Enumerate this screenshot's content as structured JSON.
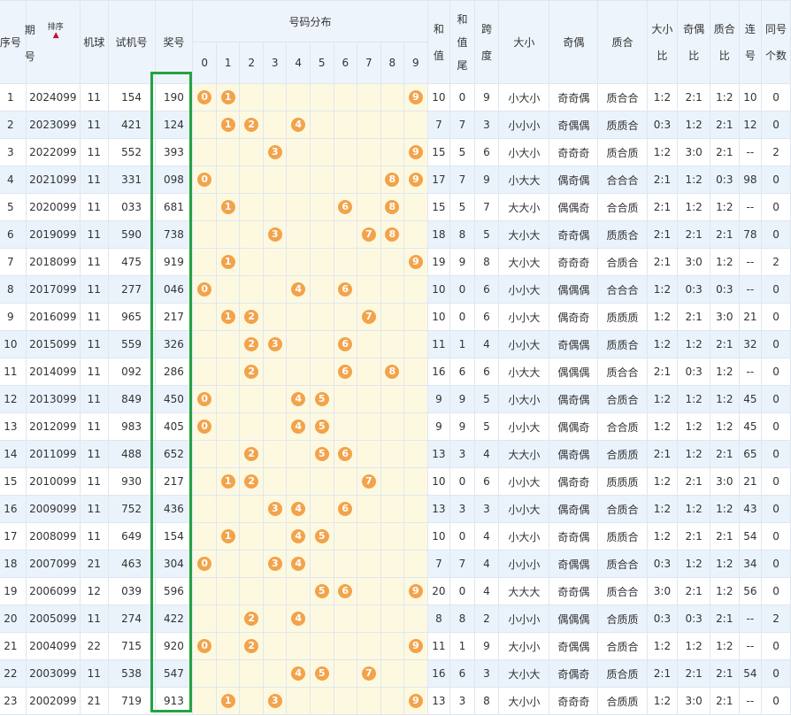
{
  "header": {
    "seq": "序号",
    "period_line1": "期",
    "period_line2": "号",
    "sort_label": "排序",
    "sort_arrow": "▲",
    "machine": "机球",
    "test_no": "试机号",
    "prize": "奖号",
    "dist_title": "号码分布",
    "digits": [
      "0",
      "1",
      "2",
      "3",
      "4",
      "5",
      "6",
      "7",
      "8",
      "9"
    ],
    "sum_l1": "和",
    "sum_l2": "值",
    "sumtail_l1": "和",
    "sumtail_l2": "值",
    "sumtail_l3": "尾",
    "span_l1": "跨",
    "span_l2": "度",
    "size": "大小",
    "parity": "奇偶",
    "prime": "质合",
    "size_ratio_l1": "大小",
    "size_ratio_l2": "比",
    "parity_ratio_l1": "奇偶",
    "parity_ratio_l2": "比",
    "prime_ratio_l1": "质合",
    "prime_ratio_l2": "比",
    "consec_l1": "连",
    "consec_l2": "号",
    "same_l1": "同号",
    "same_l2": "个数"
  },
  "rows": [
    {
      "seq": "1",
      "period": "2024099",
      "machine": "11",
      "test": "154",
      "prize": "190",
      "balls": [
        0,
        1,
        9
      ],
      "sum": "10",
      "tail": "0",
      "span": "9",
      "size": "小大小",
      "parity": "奇奇偶",
      "prime": "质合合",
      "sr": "1:2",
      "pr": "2:1",
      "qr": "1:2",
      "consec": "10",
      "same": "0"
    },
    {
      "seq": "2",
      "period": "2023099",
      "machine": "11",
      "test": "421",
      "prize": "124",
      "balls": [
        1,
        2,
        4
      ],
      "sum": "7",
      "tail": "7",
      "span": "3",
      "size": "小小小",
      "parity": "奇偶偶",
      "prime": "质质合",
      "sr": "0:3",
      "pr": "1:2",
      "qr": "2:1",
      "consec": "12",
      "same": "0"
    },
    {
      "seq": "3",
      "period": "2022099",
      "machine": "11",
      "test": "552",
      "prize": "393",
      "balls": [
        3,
        9
      ],
      "sum": "15",
      "tail": "5",
      "span": "6",
      "size": "小大小",
      "parity": "奇奇奇",
      "prime": "质合质",
      "sr": "1:2",
      "pr": "3:0",
      "qr": "2:1",
      "consec": "--",
      "same": "2"
    },
    {
      "seq": "4",
      "period": "2021099",
      "machine": "11",
      "test": "331",
      "prize": "098",
      "balls": [
        0,
        8,
        9
      ],
      "sum": "17",
      "tail": "7",
      "span": "9",
      "size": "小大大",
      "parity": "偶奇偶",
      "prime": "合合合",
      "sr": "2:1",
      "pr": "1:2",
      "qr": "0:3",
      "consec": "98",
      "same": "0"
    },
    {
      "seq": "5",
      "period": "2020099",
      "machine": "11",
      "test": "033",
      "prize": "681",
      "balls": [
        1,
        6,
        8
      ],
      "sum": "15",
      "tail": "5",
      "span": "7",
      "size": "大大小",
      "parity": "偶偶奇",
      "prime": "合合质",
      "sr": "2:1",
      "pr": "1:2",
      "qr": "1:2",
      "consec": "--",
      "same": "0"
    },
    {
      "seq": "6",
      "period": "2019099",
      "machine": "11",
      "test": "590",
      "prize": "738",
      "balls": [
        3,
        7,
        8
      ],
      "sum": "18",
      "tail": "8",
      "span": "5",
      "size": "大小大",
      "parity": "奇奇偶",
      "prime": "质质合",
      "sr": "2:1",
      "pr": "2:1",
      "qr": "2:1",
      "consec": "78",
      "same": "0"
    },
    {
      "seq": "7",
      "period": "2018099",
      "machine": "11",
      "test": "475",
      "prize": "919",
      "balls": [
        1,
        9
      ],
      "sum": "19",
      "tail": "9",
      "span": "8",
      "size": "大小大",
      "parity": "奇奇奇",
      "prime": "合质合",
      "sr": "2:1",
      "pr": "3:0",
      "qr": "1:2",
      "consec": "--",
      "same": "2"
    },
    {
      "seq": "8",
      "period": "2017099",
      "machine": "11",
      "test": "277",
      "prize": "046",
      "balls": [
        0,
        4,
        6
      ],
      "sum": "10",
      "tail": "0",
      "span": "6",
      "size": "小小大",
      "parity": "偶偶偶",
      "prime": "合合合",
      "sr": "1:2",
      "pr": "0:3",
      "qr": "0:3",
      "consec": "--",
      "same": "0"
    },
    {
      "seq": "9",
      "period": "2016099",
      "machine": "11",
      "test": "965",
      "prize": "217",
      "balls": [
        1,
        2,
        7
      ],
      "sum": "10",
      "tail": "0",
      "span": "6",
      "size": "小小大",
      "parity": "偶奇奇",
      "prime": "质质质",
      "sr": "1:2",
      "pr": "2:1",
      "qr": "3:0",
      "consec": "21",
      "same": "0"
    },
    {
      "seq": "10",
      "period": "2015099",
      "machine": "11",
      "test": "559",
      "prize": "326",
      "balls": [
        2,
        3,
        6
      ],
      "sum": "11",
      "tail": "1",
      "span": "4",
      "size": "小小大",
      "parity": "奇偶偶",
      "prime": "质质合",
      "sr": "1:2",
      "pr": "1:2",
      "qr": "2:1",
      "consec": "32",
      "same": "0"
    },
    {
      "seq": "11",
      "period": "2014099",
      "machine": "11",
      "test": "092",
      "prize": "286",
      "balls": [
        2,
        6,
        8
      ],
      "sum": "16",
      "tail": "6",
      "span": "6",
      "size": "小大大",
      "parity": "偶偶偶",
      "prime": "质合合",
      "sr": "2:1",
      "pr": "0:3",
      "qr": "1:2",
      "consec": "--",
      "same": "0"
    },
    {
      "seq": "12",
      "period": "2013099",
      "machine": "11",
      "test": "849",
      "prize": "450",
      "balls": [
        0,
        4,
        5
      ],
      "sum": "9",
      "tail": "9",
      "span": "5",
      "size": "小大小",
      "parity": "偶奇偶",
      "prime": "合质合",
      "sr": "1:2",
      "pr": "1:2",
      "qr": "1:2",
      "consec": "45",
      "same": "0"
    },
    {
      "seq": "13",
      "period": "2012099",
      "machine": "11",
      "test": "983",
      "prize": "405",
      "balls": [
        0,
        4,
        5
      ],
      "sum": "9",
      "tail": "9",
      "span": "5",
      "size": "小小大",
      "parity": "偶偶奇",
      "prime": "合合质",
      "sr": "1:2",
      "pr": "1:2",
      "qr": "1:2",
      "consec": "45",
      "same": "0"
    },
    {
      "seq": "14",
      "period": "2011099",
      "machine": "11",
      "test": "488",
      "prize": "652",
      "balls": [
        2,
        5,
        6
      ],
      "sum": "13",
      "tail": "3",
      "span": "4",
      "size": "大大小",
      "parity": "偶奇偶",
      "prime": "合质质",
      "sr": "2:1",
      "pr": "1:2",
      "qr": "2:1",
      "consec": "65",
      "same": "0"
    },
    {
      "seq": "15",
      "period": "2010099",
      "machine": "11",
      "test": "930",
      "prize": "217",
      "balls": [
        1,
        2,
        7
      ],
      "sum": "10",
      "tail": "0",
      "span": "6",
      "size": "小小大",
      "parity": "偶奇奇",
      "prime": "质质质",
      "sr": "1:2",
      "pr": "2:1",
      "qr": "3:0",
      "consec": "21",
      "same": "0"
    },
    {
      "seq": "16",
      "period": "2009099",
      "machine": "11",
      "test": "752",
      "prize": "436",
      "balls": [
        3,
        4,
        6
      ],
      "sum": "13",
      "tail": "3",
      "span": "3",
      "size": "小小大",
      "parity": "偶奇偶",
      "prime": "合质合",
      "sr": "1:2",
      "pr": "1:2",
      "qr": "1:2",
      "consec": "43",
      "same": "0"
    },
    {
      "seq": "17",
      "period": "2008099",
      "machine": "11",
      "test": "649",
      "prize": "154",
      "balls": [
        1,
        4,
        5
      ],
      "sum": "10",
      "tail": "0",
      "span": "4",
      "size": "小大小",
      "parity": "奇奇偶",
      "prime": "质质合",
      "sr": "1:2",
      "pr": "2:1",
      "qr": "2:1",
      "consec": "54",
      "same": "0"
    },
    {
      "seq": "18",
      "period": "2007099",
      "machine": "21",
      "test": "463",
      "prize": "304",
      "balls": [
        0,
        3,
        4
      ],
      "sum": "7",
      "tail": "7",
      "span": "4",
      "size": "小小小",
      "parity": "奇偶偶",
      "prime": "质合合",
      "sr": "0:3",
      "pr": "1:2",
      "qr": "1:2",
      "consec": "34",
      "same": "0"
    },
    {
      "seq": "19",
      "period": "2006099",
      "machine": "12",
      "test": "039",
      "prize": "596",
      "balls": [
        5,
        6,
        9
      ],
      "sum": "20",
      "tail": "0",
      "span": "4",
      "size": "大大大",
      "parity": "奇奇偶",
      "prime": "质合合",
      "sr": "3:0",
      "pr": "2:1",
      "qr": "1:2",
      "consec": "56",
      "same": "0"
    },
    {
      "seq": "20",
      "period": "2005099",
      "machine": "11",
      "test": "274",
      "prize": "422",
      "balls": [
        2,
        4
      ],
      "sum": "8",
      "tail": "8",
      "span": "2",
      "size": "小小小",
      "parity": "偶偶偶",
      "prime": "合质质",
      "sr": "0:3",
      "pr": "0:3",
      "qr": "2:1",
      "consec": "--",
      "same": "2"
    },
    {
      "seq": "21",
      "period": "2004099",
      "machine": "22",
      "test": "715",
      "prize": "920",
      "balls": [
        0,
        2,
        9
      ],
      "sum": "11",
      "tail": "1",
      "span": "9",
      "size": "大小小",
      "parity": "奇偶偶",
      "prime": "合质合",
      "sr": "1:2",
      "pr": "1:2",
      "qr": "1:2",
      "consec": "--",
      "same": "0"
    },
    {
      "seq": "22",
      "period": "2003099",
      "machine": "11",
      "test": "538",
      "prize": "547",
      "balls": [
        4,
        5,
        7
      ],
      "sum": "16",
      "tail": "6",
      "span": "3",
      "size": "大小大",
      "parity": "奇偶奇",
      "prime": "质合质",
      "sr": "2:1",
      "pr": "2:1",
      "qr": "2:1",
      "consec": "54",
      "same": "0"
    },
    {
      "seq": "23",
      "period": "2002099",
      "machine": "21",
      "test": "719",
      "prize": "913",
      "balls": [
        1,
        3,
        9
      ],
      "sum": "13",
      "tail": "3",
      "span": "8",
      "size": "大小小",
      "parity": "奇奇奇",
      "prime": "合质质",
      "sr": "1:2",
      "pr": "3:0",
      "qr": "2:1",
      "consec": "--",
      "same": "0"
    }
  ]
}
